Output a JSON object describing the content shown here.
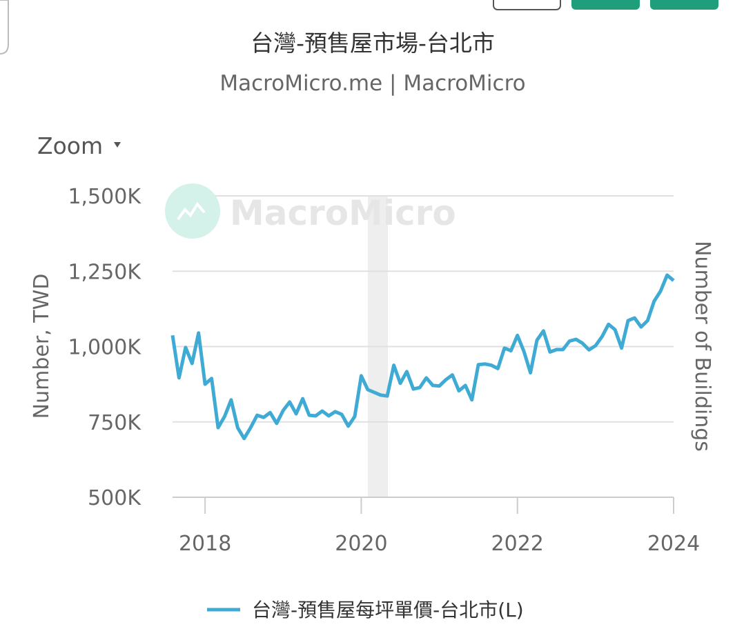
{
  "chart_data": {
    "type": "line",
    "title": "台灣-預售屋市場-台北市",
    "subtitle": "MacroMicro.me | MacroMicro",
    "zoom_label": "Zoom",
    "watermark": "MacroMicro",
    "y_label": "Number, TWD",
    "y2_label": "Number of Buildings",
    "x": [
      "2017-08",
      "2017-09",
      "2017-10",
      "2017-11",
      "2017-12",
      "2018-01",
      "2018-02",
      "2018-03",
      "2018-04",
      "2018-05",
      "2018-06",
      "2018-07",
      "2018-08",
      "2018-09",
      "2018-10",
      "2018-11",
      "2018-12",
      "2019-01",
      "2019-02",
      "2019-03",
      "2019-04",
      "2019-05",
      "2019-06",
      "2019-07",
      "2019-08",
      "2019-09",
      "2019-10",
      "2019-11",
      "2019-12",
      "2020-01",
      "2020-02",
      "2020-03",
      "2020-04",
      "2020-05",
      "2020-06",
      "2020-07",
      "2020-08",
      "2020-09",
      "2020-10",
      "2020-11",
      "2020-12",
      "2021-01",
      "2021-02",
      "2021-03",
      "2021-04",
      "2021-05",
      "2021-06",
      "2021-07",
      "2021-08",
      "2021-09",
      "2021-10",
      "2021-11",
      "2021-12",
      "2022-01",
      "2022-02",
      "2022-03",
      "2022-04",
      "2022-05",
      "2022-06",
      "2022-07",
      "2022-08",
      "2022-09",
      "2022-10",
      "2022-11",
      "2022-12",
      "2023-01",
      "2023-02",
      "2023-03",
      "2023-04",
      "2023-05",
      "2023-06",
      "2023-07",
      "2023-08",
      "2023-09",
      "2023-10",
      "2023-11",
      "2023-12",
      "2024-01"
    ],
    "series": [
      {
        "name": "台灣-預售屋每坪單價-台北市(L)",
        "color": "#3fabd4",
        "values": [
          1037000,
          896000,
          997000,
          944000,
          1045000,
          875000,
          894000,
          731000,
          768000,
          823000,
          731000,
          695000,
          731000,
          772000,
          765000,
          781000,
          745000,
          788000,
          816000,
          777000,
          827000,
          772000,
          770000,
          786000,
          770000,
          784000,
          775000,
          736000,
          768000,
          903000,
          857000,
          848000,
          839000,
          836000,
          938000,
          878000,
          917000,
          859000,
          864000,
          896000,
          871000,
          869000,
          890000,
          906000,
          853000,
          871000,
          823000,
          940000,
          942000,
          938000,
          927000,
          995000,
          986000,
          1037000,
          984000,
          913000,
          1021000,
          1052000,
          982000,
          990000,
          990000,
          1018000,
          1024000,
          1011000,
          989000,
          1003000,
          1033000,
          1074000,
          1056000,
          995000,
          1086000,
          1095000,
          1065000,
          1086000,
          1150000,
          1184000,
          1237000,
          1219000
        ]
      }
    ],
    "xlim": [
      "2017-08",
      "2024-01"
    ],
    "xticks": [
      {
        "value": "2018-01",
        "label": "2018"
      },
      {
        "value": "2020-01",
        "label": "2020"
      },
      {
        "value": "2022-01",
        "label": "2022"
      },
      {
        "value": "2024-01",
        "label": "2024"
      }
    ],
    "ylim": [
      500000,
      1500000
    ],
    "yticks": [
      {
        "value": 500000,
        "label": "500K"
      },
      {
        "value": 750000,
        "label": "750K"
      },
      {
        "value": 1000000,
        "label": "1,000K"
      },
      {
        "value": 1250000,
        "label": "1,250K"
      },
      {
        "value": 1500000,
        "label": "1,500K"
      }
    ],
    "grid": true
  }
}
